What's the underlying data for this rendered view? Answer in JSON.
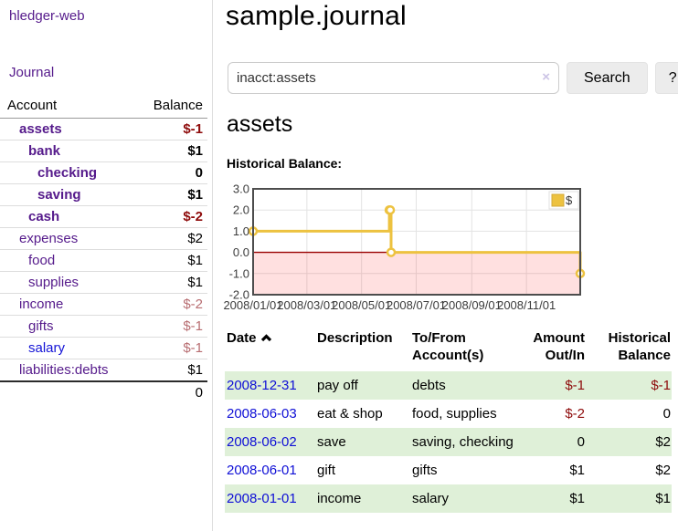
{
  "app": {
    "brand": "hledger-web",
    "journal_link": "Journal"
  },
  "sidebar": {
    "header": {
      "account": "Account",
      "balance": "Balance"
    },
    "accounts": [
      {
        "name": "assets",
        "balance": "$-1",
        "name_cls": "d1 bold",
        "bal_cls": "bold neg"
      },
      {
        "name": "bank",
        "balance": "$1",
        "name_cls": "d2 bold",
        "bal_cls": "bold"
      },
      {
        "name": "checking",
        "balance": "0",
        "name_cls": "d3 bold",
        "bal_cls": "bold"
      },
      {
        "name": "saving",
        "balance": "$1",
        "name_cls": "d3 bold",
        "bal_cls": "bold"
      },
      {
        "name": "cash",
        "balance": "$-2",
        "name_cls": "d2 bold",
        "bal_cls": "bold neg"
      },
      {
        "name": "expenses",
        "balance": "$2",
        "name_cls": "d1",
        "bal_cls": ""
      },
      {
        "name": "food",
        "balance": "$1",
        "name_cls": "d2",
        "bal_cls": ""
      },
      {
        "name": "supplies",
        "balance": "$1",
        "name_cls": "d2",
        "bal_cls": ""
      },
      {
        "name": "income",
        "balance": "$-2",
        "name_cls": "d1",
        "bal_cls": "dim"
      },
      {
        "name": "gifts",
        "balance": "$-1",
        "name_cls": "d2",
        "bal_cls": "dim"
      },
      {
        "name": "salary",
        "balance": "$-1",
        "name_cls": "d2 blue",
        "bal_cls": "dim"
      },
      {
        "name": "liabilities:debts",
        "balance": "$1",
        "name_cls": "d1",
        "bal_cls": ""
      }
    ],
    "total": "0"
  },
  "header": {
    "title": "sample.journal"
  },
  "search": {
    "value": "inacct:assets",
    "clear_icon": "×",
    "button_label": "Search",
    "help_label": "?"
  },
  "main": {
    "account_title": "assets",
    "chart_label": "Historical Balance:"
  },
  "chart_data": {
    "type": "line",
    "step": true,
    "title": "Historical Balance",
    "x_range": [
      "2008-01-01",
      "2008-12-31"
    ],
    "ylim": [
      -2,
      3
    ],
    "y_ticks": [
      3.0,
      2.0,
      1.0,
      0.0,
      -1.0,
      -2.0
    ],
    "x_ticks": [
      {
        "date": "2008-01-01",
        "label": "2008/01/01"
      },
      {
        "date": "2008-03-01",
        "label": "2008/03/01"
      },
      {
        "date": "2008-05-01",
        "label": "2008/05/01"
      },
      {
        "date": "2008-07-01",
        "label": "2008/07/01"
      },
      {
        "date": "2008-09-01",
        "label": "2008/09/01"
      },
      {
        "date": "2008-11-01",
        "label": "2008/11/01"
      }
    ],
    "series": [
      {
        "name": "$",
        "color": "#edc240",
        "points": [
          {
            "date": "2008-01-01",
            "value": 1
          },
          {
            "date": "2008-06-01",
            "value": 2
          },
          {
            "date": "2008-06-02",
            "value": 2
          },
          {
            "date": "2008-06-03",
            "value": 0
          },
          {
            "date": "2008-12-31",
            "value": -1
          }
        ]
      }
    ],
    "grid": true,
    "grid_color": "#e3e3e3",
    "border_color": "#4d4d4d",
    "zero_line_color": "#990000",
    "negative_region_color": "rgba(255,0,0,0.12)",
    "legend_position": "top-right"
  },
  "register": {
    "headers": {
      "date": "Date",
      "description": "Description",
      "accounts": "To/From Account(s)",
      "amount": "Amount Out/In",
      "balance": "Historical Balance"
    },
    "rows": [
      {
        "date": "2008-12-31",
        "description": "pay off",
        "accounts": "debts",
        "amount": "$-1",
        "balance": "$-1",
        "row_cls": "shaded",
        "amount_cls": "neg",
        "balance_cls": "neg"
      },
      {
        "date": "2008-06-03",
        "description": "eat & shop",
        "accounts": "food, supplies",
        "amount": "$-2",
        "balance": "0",
        "row_cls": "",
        "amount_cls": "neg",
        "balance_cls": ""
      },
      {
        "date": "2008-06-02",
        "description": "save",
        "accounts": "saving, checking",
        "amount": "0",
        "balance": "$2",
        "row_cls": "shaded",
        "amount_cls": "",
        "balance_cls": ""
      },
      {
        "date": "2008-06-01",
        "description": "gift",
        "accounts": "gifts",
        "amount": "$1",
        "balance": "$2",
        "row_cls": "",
        "amount_cls": "",
        "balance_cls": ""
      },
      {
        "date": "2008-01-01",
        "description": "income",
        "accounts": "salary",
        "amount": "$1",
        "balance": "$1",
        "row_cls": "shaded",
        "amount_cls": "",
        "balance_cls": ""
      }
    ]
  }
}
